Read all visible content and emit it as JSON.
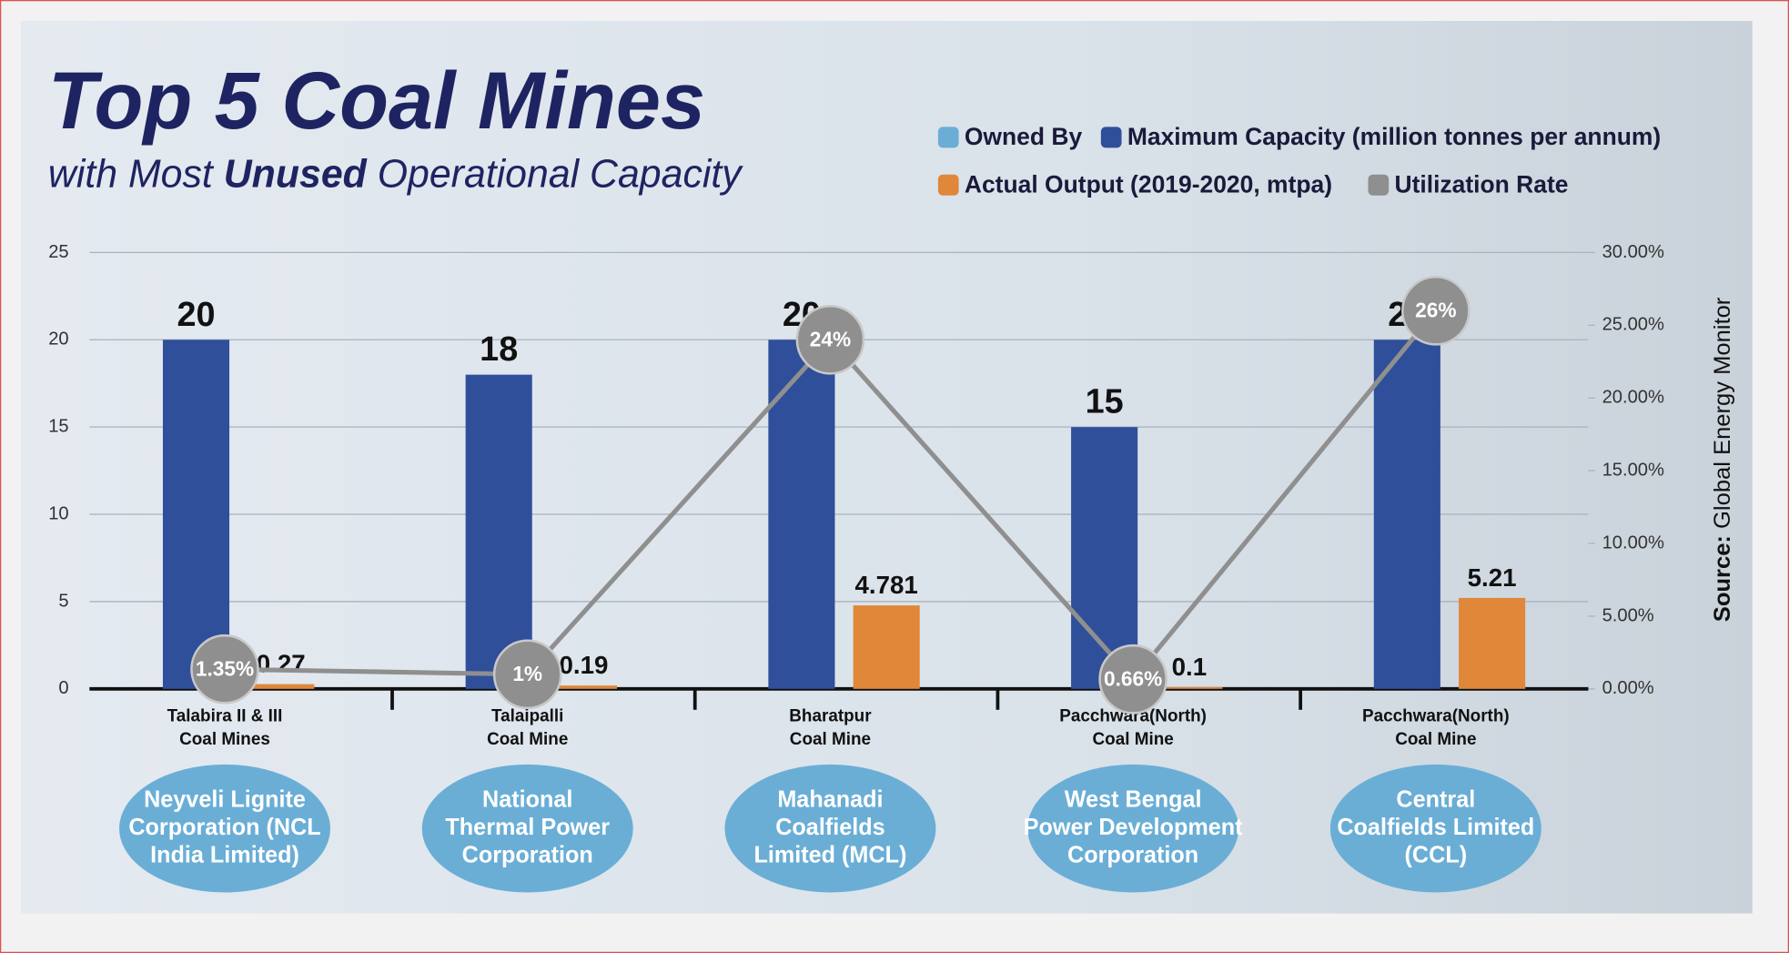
{
  "chart_data": {
    "type": "bar",
    "title": "Top 5 Coal Mines",
    "subtitle": [
      "with Most",
      "Unused",
      "Operational Capacity"
    ],
    "source_label": "Source:",
    "source": "Global Energy Monitor",
    "categories": [
      [
        "Talabira II & III",
        "Coal Mines"
      ],
      [
        "Talaipalli",
        "Coal Mine"
      ],
      [
        "Bharatpur",
        "Coal Mine"
      ],
      [
        "Pacchwara(North)",
        "Coal Mine"
      ],
      [
        "Pacchwara(North)",
        "Coal Mine"
      ]
    ],
    "owners": {
      "name": "Owned By",
      "color": "#6aaed6",
      "values": [
        [
          "Neyveli Lignite",
          "Corporation (NCL",
          "India Limited)"
        ],
        [
          "National",
          "Thermal Power",
          "Corporation"
        ],
        [
          "Mahanadi",
          "Coalfields",
          "Limited (MCL)"
        ],
        [
          "West Bengal",
          "Power Development",
          "Corporation"
        ],
        [
          "Central",
          "Coalfields Limited",
          "(CCL)"
        ]
      ]
    },
    "series": [
      {
        "name": "Maximum Capacity (million tonnes per annum)",
        "color": "#2f4f9a",
        "values": [
          20,
          18,
          20,
          15,
          20
        ]
      },
      {
        "name": "Actual Output (2019-2020, mtpa)",
        "color": "#e0873a",
        "values": [
          0.27,
          0.19,
          4.781,
          0.1,
          5.21
        ]
      },
      {
        "name": "Utilization Rate",
        "color": "#8f8f8f",
        "type": "line",
        "axis": "y2",
        "values": [
          1.35,
          1,
          24,
          0.66,
          26
        ],
        "value_labels": [
          "1.35%",
          "1%",
          "24%",
          "0.66%",
          "26%"
        ]
      }
    ],
    "ylim": [
      0,
      25
    ],
    "yticks": [
      0,
      5,
      10,
      15,
      20,
      25
    ],
    "y2lim": [
      0,
      30
    ],
    "y2ticks": [
      {
        "value": 0,
        "label": "0.00%"
      },
      {
        "value": 5,
        "label": "5.00%"
      },
      {
        "value": 10,
        "label": "10.00%"
      },
      {
        "value": 15,
        "label": "15.00%"
      },
      {
        "value": 20,
        "label": "20.00%"
      },
      {
        "value": 25,
        "label": "25.00%"
      },
      {
        "value": 30,
        "label": "30.00%"
      }
    ],
    "grid": true
  }
}
